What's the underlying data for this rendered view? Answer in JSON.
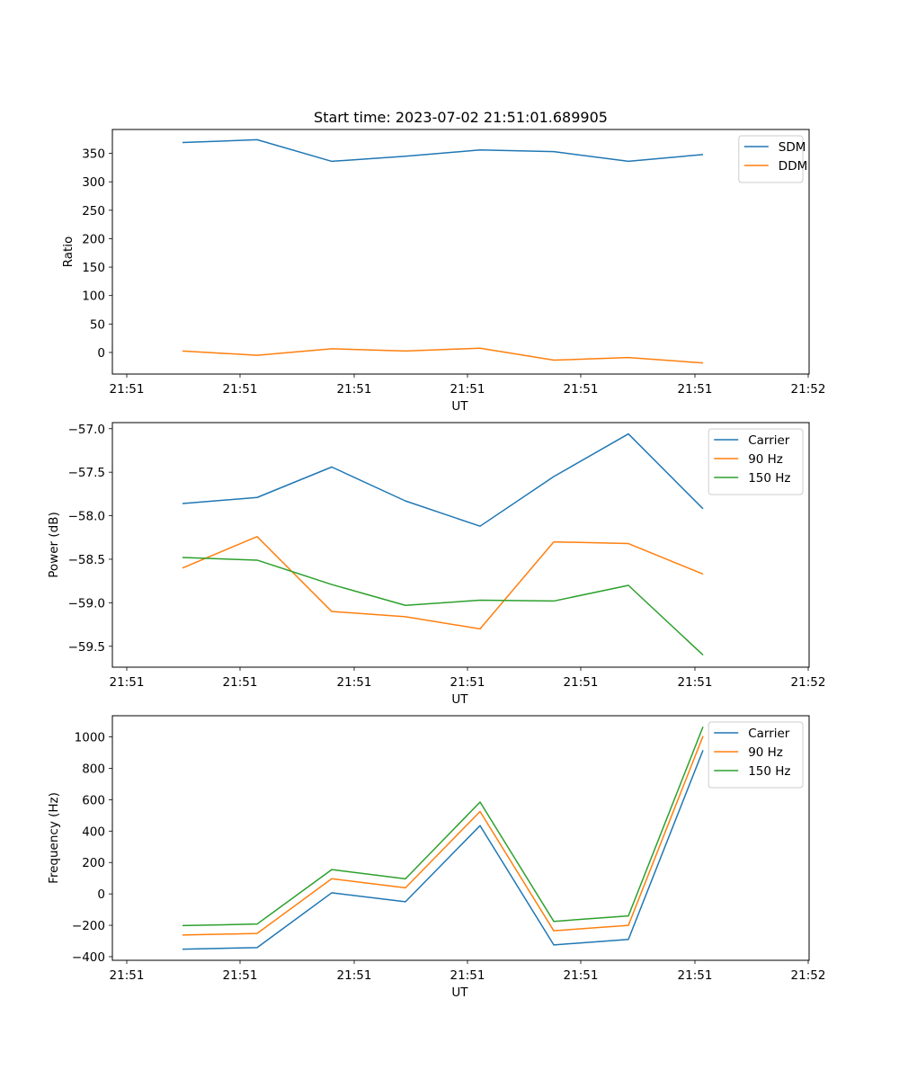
{
  "figure": {
    "title": "Start time: 2023-07-02 21:51:01.689905"
  },
  "chart_data": [
    {
      "type": "line",
      "title": "Start time: 2023-07-02 21:51:01.689905",
      "xlabel": "UT",
      "ylabel": "Ratio",
      "x_ticks": [
        "21:51",
        "21:51",
        "21:51",
        "21:51",
        "21:51",
        "21:51",
        "21:52"
      ],
      "y_ticks": [
        0,
        50,
        100,
        150,
        200,
        250,
        300,
        350
      ],
      "ylim": [
        -38,
        392
      ],
      "legend_position": "top-right",
      "grid": false,
      "series": [
        {
          "name": "SDM",
          "color": "#1f77b4",
          "values": [
            369,
            374,
            336,
            345,
            356,
            353,
            336,
            348
          ]
        },
        {
          "name": "DDM",
          "color": "#ff7f0e",
          "values": [
            2.5,
            -5,
            6.5,
            2.5,
            7.5,
            -13.5,
            -9,
            -18.5
          ]
        }
      ]
    },
    {
      "type": "line",
      "title": "",
      "xlabel": "UT",
      "ylabel": "Power (dB)",
      "x_ticks": [
        "21:51",
        "21:51",
        "21:51",
        "21:51",
        "21:51",
        "21:51",
        "21:52"
      ],
      "y_ticks": [
        -59.5,
        -59.0,
        -58.5,
        -58.0,
        -57.5,
        -57.0
      ],
      "y_tick_labels": [
        "−59.5",
        "−59.0",
        "−58.5",
        "−58.0",
        "−57.5",
        "−57.0"
      ],
      "ylim": [
        -59.74,
        -56.93
      ],
      "legend_position": "top-right",
      "grid": false,
      "series": [
        {
          "name": "Carrier",
          "color": "#1f77b4",
          "values": [
            -57.86,
            -57.79,
            -57.44,
            -57.83,
            -58.12,
            -57.55,
            -57.06,
            -57.92
          ]
        },
        {
          "name": "90 Hz",
          "color": "#ff7f0e",
          "values": [
            -58.6,
            -58.24,
            -59.1,
            -59.16,
            -59.3,
            -58.3,
            -58.32,
            -58.67
          ]
        },
        {
          "name": "150 Hz",
          "color": "#2ca02c",
          "values": [
            -58.48,
            -58.51,
            -58.79,
            -59.03,
            -58.97,
            -58.98,
            -58.8,
            -59.6
          ]
        }
      ]
    },
    {
      "type": "line",
      "title": "",
      "xlabel": "UT",
      "ylabel": "Frequency (Hz)",
      "x_ticks": [
        "21:51",
        "21:51",
        "21:51",
        "21:51",
        "21:51",
        "21:51",
        "21:52"
      ],
      "y_ticks": [
        -400,
        -200,
        0,
        200,
        400,
        600,
        800,
        1000
      ],
      "y_tick_labels": [
        "−400",
        "−200",
        "0",
        "200",
        "400",
        "600",
        "800",
        "1000"
      ],
      "ylim": [
        -423,
        1135
      ],
      "legend_position": "top-right",
      "grid": false,
      "series": [
        {
          "name": "Carrier",
          "color": "#1f77b4",
          "values": [
            -352,
            -342,
            7,
            -50,
            435,
            -325,
            -290,
            915
          ]
        },
        {
          "name": "90 Hz",
          "color": "#ff7f0e",
          "values": [
            -262,
            -252,
            97,
            39,
            525,
            -235,
            -200,
            1005
          ]
        },
        {
          "name": "150 Hz",
          "color": "#2ca02c",
          "values": [
            -202,
            -192,
            155,
            96,
            585,
            -175,
            -140,
            1065
          ]
        }
      ]
    }
  ]
}
